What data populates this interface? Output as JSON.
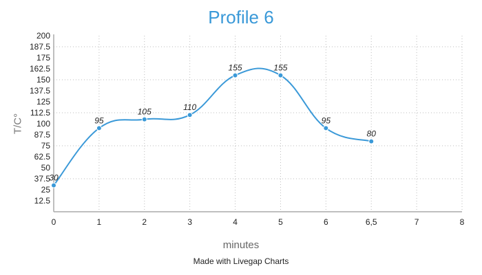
{
  "chart": {
    "title": "Profile 6",
    "ylabel": "T/C°",
    "xlabel": "minutes",
    "credit": "Made with Livegap Charts",
    "colors": {
      "line": "#3a99d8",
      "title": "#3a99d8",
      "grid": "#bbbbbb",
      "axis": "#aaaaaa"
    }
  },
  "chart_data": {
    "type": "line",
    "title": "Profile 6",
    "xlabel": "minutes",
    "ylabel": "T/C°",
    "categories": [
      "0",
      "1",
      "2",
      "3",
      "4",
      "5",
      "6",
      "6,5",
      "7",
      "8"
    ],
    "series": [
      {
        "name": "Profile 6",
        "values": [
          30,
          95,
          105,
          110,
          155,
          155,
          95,
          80,
          null,
          null
        ]
      }
    ],
    "data_labels": true,
    "ylim": [
      0,
      200
    ],
    "yticks": [
      12.5,
      25,
      37.5,
      50,
      62.5,
      75,
      87.5,
      100,
      112.5,
      125,
      137.5,
      150,
      162.5,
      175,
      187.5,
      200
    ],
    "grid": {
      "style": "dotted",
      "horizontal_at": [
        37.5,
        75,
        112.5,
        150,
        187.5
      ],
      "vertical": true
    },
    "smooth": true,
    "legend": "none"
  }
}
